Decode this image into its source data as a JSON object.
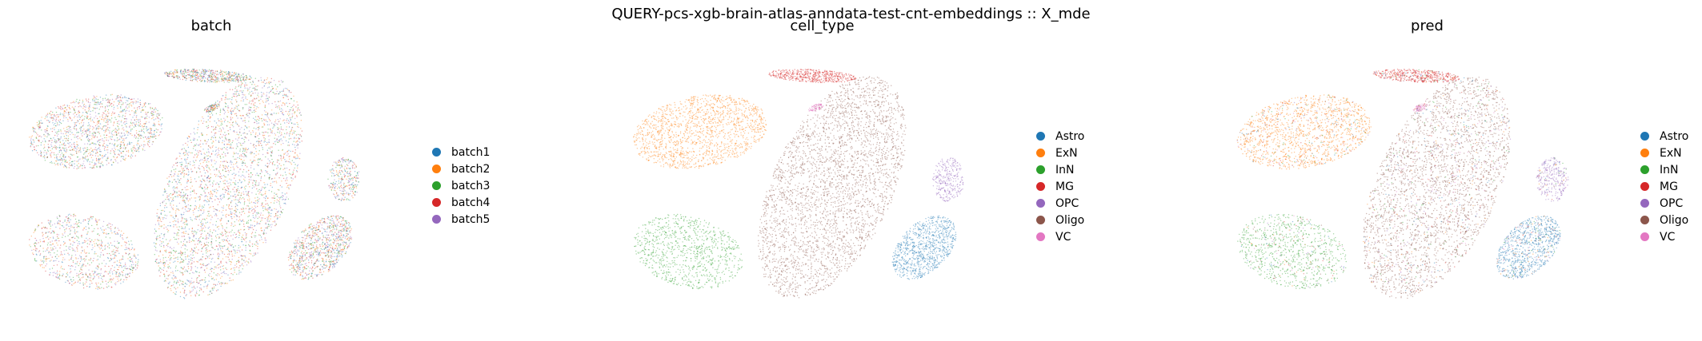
{
  "suptitle": "QUERY-pcs-xgb-brain-atlas-anndata-test-cnt-embeddings :: X_mde",
  "chart_data": [
    {
      "type": "scatter",
      "title": "batch",
      "legend_placement": "right",
      "categories": [
        "batch1",
        "batch2",
        "batch3",
        "batch4",
        "batch5"
      ],
      "colors": [
        "#1f77b4",
        "#ff7f0e",
        "#2ca02c",
        "#d62728",
        "#9467bd"
      ],
      "mode": "batch"
    },
    {
      "type": "scatter",
      "title": "cell_type",
      "legend_placement": "right",
      "categories": [
        "Astro",
        "ExN",
        "InN",
        "MG",
        "OPC",
        "Oligo",
        "VC"
      ],
      "colors": [
        "#1f77b4",
        "#ff7f0e",
        "#2ca02c",
        "#d62728",
        "#9467bd",
        "#8c564b",
        "#e377c2"
      ],
      "mode": "cell_type"
    },
    {
      "type": "scatter",
      "title": "pred",
      "legend_placement": "right",
      "categories": [
        "Astro",
        "ExN",
        "InN",
        "MG",
        "OPC",
        "Oligo",
        "VC"
      ],
      "colors": [
        "#1f77b4",
        "#ff7f0e",
        "#2ca02c",
        "#d62728",
        "#9467bd",
        "#8c564b",
        "#e377c2"
      ],
      "mode": "pred"
    }
  ]
}
